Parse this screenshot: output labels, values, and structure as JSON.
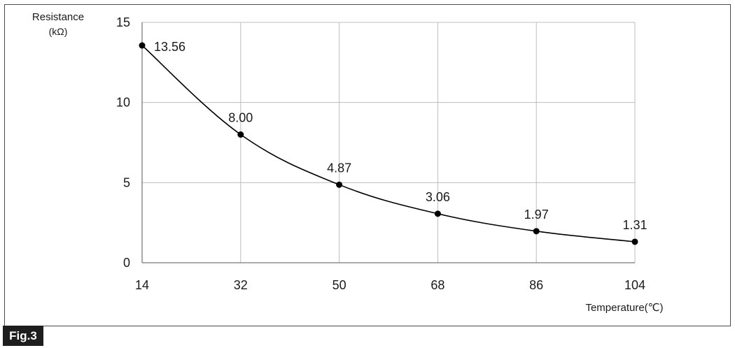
{
  "chart_data": {
    "type": "line",
    "ylabel": "Resistance",
    "yunit": "(kΩ)",
    "xlabel": "Temperature(℃)",
    "x": [
      14,
      32,
      50,
      68,
      86,
      104
    ],
    "values": [
      13.56,
      8.0,
      4.87,
      3.06,
      1.97,
      1.31
    ],
    "data_labels": [
      "13.56",
      "8.00",
      "4.87",
      "3.06",
      "1.97",
      "1.31"
    ],
    "xticks": [
      "14",
      "32",
      "50",
      "68",
      "86",
      "104"
    ],
    "yticks": [
      "0",
      "5",
      "10",
      "15"
    ],
    "yticks_values": [
      0,
      5,
      10,
      15
    ],
    "xlim": [
      14,
      104
    ],
    "ylim": [
      0,
      15
    ],
    "grid": true,
    "line_color": "#000000",
    "grid_color": "#bdbdbd"
  },
  "figure": {
    "label": "Fig.3"
  }
}
